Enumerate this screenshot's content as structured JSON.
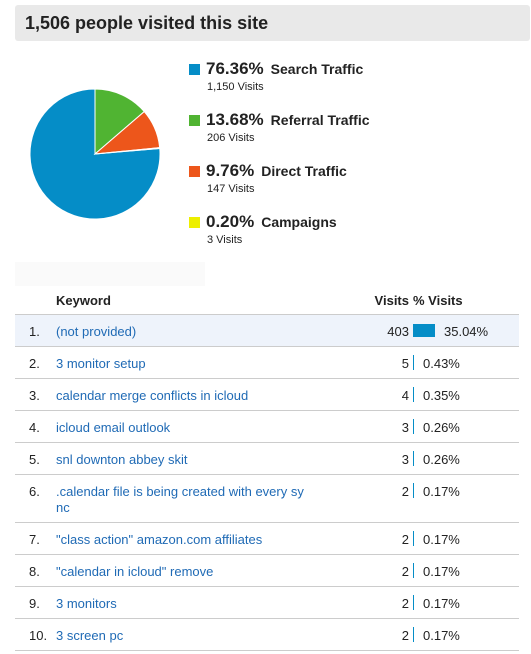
{
  "header": {
    "title": "1,506 people visited this site"
  },
  "traffic": [
    {
      "percent": "76.36%",
      "label": "Search Traffic",
      "visits": "1,150 Visits",
      "color": "#058dc7",
      "value": 76.36
    },
    {
      "percent": "13.68%",
      "label": "Referral Traffic",
      "visits": "206 Visits",
      "color": "#50b432",
      "value": 13.68
    },
    {
      "percent": "9.76%",
      "label": "Direct Traffic",
      "visits": "147 Visits",
      "color": "#ed561b",
      "value": 9.76
    },
    {
      "percent": "0.20%",
      "label": "Campaigns",
      "visits": "3 Visits",
      "color": "#edef00",
      "value": 0.2
    }
  ],
  "table": {
    "headers": {
      "keyword": "Keyword",
      "visits": "Visits",
      "pct": "% Visits"
    },
    "rows": [
      {
        "num": "1.",
        "keyword": "(not provided)",
        "visits": "403",
        "pct": "35.04%",
        "value": 35.04
      },
      {
        "num": "2.",
        "keyword": "3 monitor setup",
        "visits": "5",
        "pct": "0.43%",
        "value": 0.43
      },
      {
        "num": "3.",
        "keyword": "calendar merge conflicts in icloud",
        "visits": "4",
        "pct": "0.35%",
        "value": 0.35
      },
      {
        "num": "4.",
        "keyword": "icloud email outlook",
        "visits": "3",
        "pct": "0.26%",
        "value": 0.26
      },
      {
        "num": "5.",
        "keyword": "snl downton abbey skit",
        "visits": "3",
        "pct": "0.26%",
        "value": 0.26
      },
      {
        "num": "6.",
        "keyword": ".calendar file is being created with every sy nc",
        "visits": "2",
        "pct": "0.17%",
        "value": 0.17
      },
      {
        "num": "7.",
        "keyword": "\"class action\" amazon.com affiliates",
        "visits": "2",
        "pct": "0.17%",
        "value": 0.17
      },
      {
        "num": "8.",
        "keyword": "\"calendar in icloud\" remove",
        "visits": "2",
        "pct": "0.17%",
        "value": 0.17
      },
      {
        "num": "9.",
        "keyword": "3 monitors",
        "visits": "2",
        "pct": "0.17%",
        "value": 0.17
      },
      {
        "num": "10.",
        "keyword": "3 screen pc",
        "visits": "2",
        "pct": "0.17%",
        "value": 0.17
      }
    ]
  }
}
